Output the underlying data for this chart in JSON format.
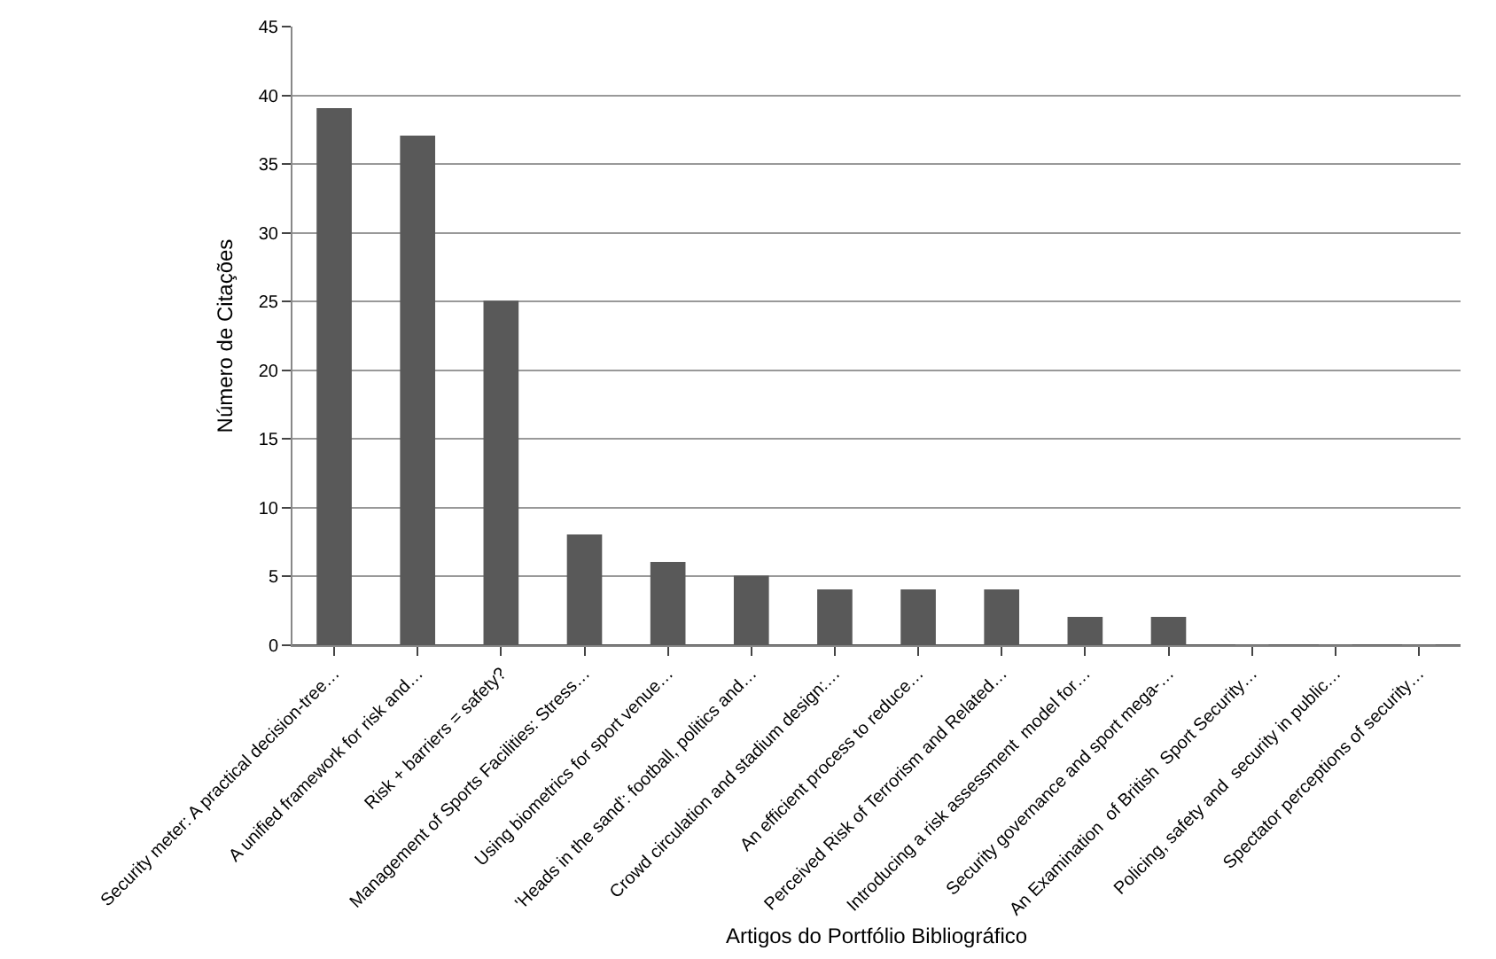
{
  "chart_data": {
    "type": "bar",
    "xlabel": "Artigos do Portfólio Bibliográfico",
    "ylabel": "Número de Citações",
    "categories": [
      "Security meter: A practical decision-tree…",
      "A unified framework for risk and…",
      "Risk + barriers = safety?",
      "Management of Sports Facilities: Stress…",
      "Using biometrics for sport venue…",
      "'Heads in the sand': football, politics and…",
      "Crowd circulation and stadium design:…",
      "An efficient process to reduce…",
      "Perceived Risk of Terrorism and Related…",
      "Introducing a risk assessment  model for…",
      "Security governance and sport mega-…",
      "An Examination  of British  Sport Security…",
      "Policing, safety and  security in public…",
      "Spectator perceptions of security…"
    ],
    "values": [
      39,
      37,
      25,
      8,
      6,
      5,
      4,
      4,
      4,
      2,
      2,
      0,
      0,
      0
    ],
    "color": "#595959",
    "ylim": [
      0,
      45
    ],
    "yticks": [
      0,
      5,
      10,
      15,
      20,
      25,
      30,
      35,
      40,
      45
    ],
    "grid": "y"
  }
}
